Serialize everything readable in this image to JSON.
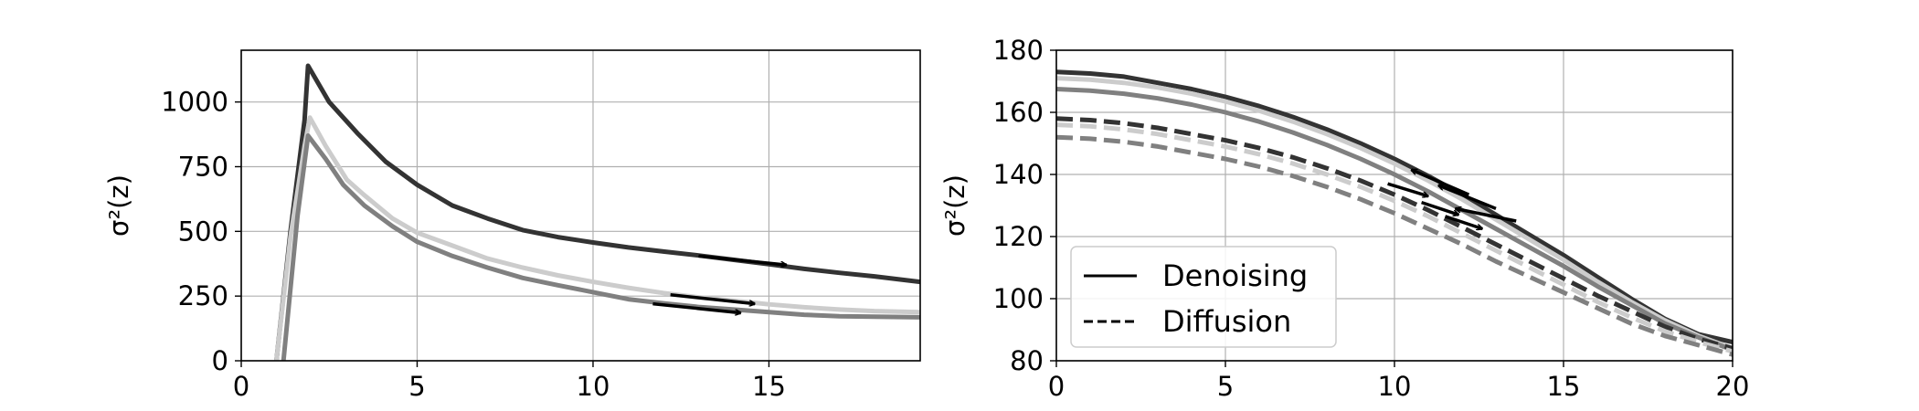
{
  "chart_data": [
    {
      "type": "line",
      "ylabel": "σ²(z)",
      "xlim": [
        0,
        19.3
      ],
      "ylim": [
        0,
        1200
      ],
      "xticks": [
        0,
        5,
        10,
        15
      ],
      "yticks": [
        0,
        250,
        500,
        750,
        1000
      ],
      "xtick_labels": [
        "0",
        "5",
        "10",
        "15"
      ],
      "ytick_labels": [
        "0",
        "250",
        "500",
        "750",
        "1000"
      ],
      "grid": true,
      "series": [
        {
          "color": "#333333",
          "points": [
            [
              1,
              0
            ],
            [
              1.4,
              500
            ],
            [
              1.8,
              930
            ],
            [
              1.9,
              1140
            ],
            [
              2.5,
              1000
            ],
            [
              3.3,
              880
            ],
            [
              4.1,
              770
            ],
            [
              5,
              680
            ],
            [
              6,
              600
            ],
            [
              7,
              550
            ],
            [
              8,
              505
            ],
            [
              9,
              478
            ],
            [
              10,
              457
            ],
            [
              11,
              438
            ],
            [
              12,
              422
            ],
            [
              13,
              407
            ],
            [
              14,
              390
            ],
            [
              15,
              373
            ],
            [
              16,
              355
            ],
            [
              17,
              340
            ],
            [
              18,
              326
            ],
            [
              19.3,
              305
            ]
          ]
        },
        {
          "color": "#cccccc",
          "points": [
            [
              1,
              0
            ],
            [
              1.4,
              480
            ],
            [
              1.8,
              830
            ],
            [
              1.95,
              940
            ],
            [
              2.4,
              830
            ],
            [
              3,
              700
            ],
            [
              3.5,
              640
            ],
            [
              4.3,
              550
            ],
            [
              5,
              495
            ],
            [
              6,
              445
            ],
            [
              7,
              395
            ],
            [
              8,
              360
            ],
            [
              9,
              330
            ],
            [
              10,
              305
            ],
            [
              11,
              282
            ],
            [
              12,
              262
            ],
            [
              13,
              245
            ],
            [
              14,
              232
            ],
            [
              15,
              218
            ],
            [
              16,
              207
            ],
            [
              17,
              198
            ],
            [
              18,
              192
            ],
            [
              19.3,
              188
            ]
          ]
        },
        {
          "color": "#808080",
          "points": [
            [
              1.2,
              0
            ],
            [
              1.6,
              560
            ],
            [
              1.9,
              870
            ],
            [
              2.4,
              780
            ],
            [
              2.9,
              680
            ],
            [
              3.5,
              600
            ],
            [
              4.3,
              520
            ],
            [
              5,
              460
            ],
            [
              6,
              405
            ],
            [
              7,
              360
            ],
            [
              8,
              320
            ],
            [
              9,
              292
            ],
            [
              10,
              265
            ],
            [
              11,
              238
            ],
            [
              12,
              222
            ],
            [
              13,
              208
            ],
            [
              14,
              198
            ],
            [
              15,
              188
            ],
            [
              16,
              178
            ],
            [
              17,
              172
            ],
            [
              18,
              170
            ],
            [
              19.3,
              168
            ]
          ]
        }
      ],
      "arrows": [
        {
          "from": [
            13,
            405
          ],
          "to": [
            15.5,
            370
          ]
        },
        {
          "from": [
            12.2,
            255
          ],
          "to": [
            14.6,
            220
          ]
        },
        {
          "from": [
            11.7,
            220
          ],
          "to": [
            14.2,
            185
          ]
        }
      ]
    },
    {
      "type": "line",
      "ylabel": "σ²(z)",
      "xlim": [
        0,
        20
      ],
      "ylim": [
        80,
        180
      ],
      "xticks": [
        0,
        5,
        10,
        15,
        20
      ],
      "yticks": [
        80,
        100,
        120,
        140,
        160,
        180
      ],
      "xtick_labels": [
        "0",
        "5",
        "10",
        "15",
        "20"
      ],
      "ytick_labels": [
        "80",
        "100",
        "120",
        "140",
        "160",
        "180"
      ],
      "grid": true,
      "legend": {
        "placement": "lower-left",
        "entries": [
          {
            "label": "Denoising",
            "style": "solid"
          },
          {
            "label": "Diffusion",
            "style": "dashed"
          }
        ]
      },
      "series": [
        {
          "style": "solid",
          "color": "#333333",
          "x": [
            0,
            1,
            2,
            3,
            4,
            5,
            6,
            7,
            8,
            9,
            10,
            11,
            12,
            13,
            14,
            15,
            16,
            17,
            18,
            19,
            20
          ],
          "y": [
            173,
            172.5,
            171.5,
            169.5,
            167.5,
            165,
            162,
            158.5,
            154.5,
            150,
            145,
            139.5,
            133.5,
            127,
            120.5,
            114,
            107,
            100,
            93.5,
            88.5,
            86
          ]
        },
        {
          "style": "solid",
          "color": "#cccccc",
          "x": [
            0,
            1,
            2,
            3,
            4,
            5,
            6,
            7,
            8,
            9,
            10,
            11,
            12,
            13,
            14,
            15,
            16,
            17,
            18,
            19,
            20
          ],
          "y": [
            171,
            170.5,
            169.5,
            168,
            166,
            163.5,
            160.5,
            157,
            153,
            148.5,
            143.5,
            138,
            132,
            125.5,
            119,
            112.5,
            105.5,
            99,
            93,
            88,
            84
          ]
        },
        {
          "style": "solid",
          "color": "#808080",
          "x": [
            0,
            1,
            2,
            3,
            4,
            5,
            6,
            7,
            8,
            9,
            10,
            11,
            12,
            13,
            14,
            15,
            16,
            17,
            18,
            19,
            20
          ],
          "y": [
            167.5,
            167,
            166,
            164.5,
            162.5,
            160,
            157,
            153.5,
            149.5,
            145,
            140,
            134.5,
            128.5,
            122.5,
            116.5,
            110.5,
            104,
            98,
            92,
            87.5,
            83.5
          ]
        },
        {
          "style": "dashed",
          "color": "#333333",
          "x": [
            0,
            1,
            2,
            3,
            4,
            5,
            6,
            7,
            8,
            9,
            10,
            11,
            12,
            13,
            14,
            15,
            16,
            17,
            18,
            19,
            20
          ],
          "y": [
            158,
            157.5,
            156.5,
            155,
            153,
            151,
            148.5,
            145.5,
            142,
            138,
            133.5,
            128.5,
            123,
            117.5,
            112,
            106.5,
            101,
            96,
            91,
            87,
            84
          ]
        },
        {
          "style": "dashed",
          "color": "#cccccc",
          "x": [
            0,
            1,
            2,
            3,
            4,
            5,
            6,
            7,
            8,
            9,
            10,
            11,
            12,
            13,
            14,
            15,
            16,
            17,
            18,
            19,
            20
          ],
          "y": [
            156,
            155.5,
            154.5,
            153,
            151,
            149,
            146.5,
            143.5,
            140,
            136,
            131.5,
            126.5,
            121,
            115.5,
            110,
            104.5,
            99,
            94,
            89.5,
            86,
            83
          ]
        },
        {
          "style": "dashed",
          "color": "#808080",
          "x": [
            0,
            1,
            2,
            3,
            4,
            5,
            6,
            7,
            8,
            9,
            10,
            11,
            12,
            13,
            14,
            15,
            16,
            17,
            18,
            19,
            20
          ],
          "y": [
            152,
            151.5,
            150.5,
            149,
            147,
            145,
            142.5,
            139.5,
            136,
            132,
            127.5,
            122.5,
            117.5,
            112,
            107,
            102,
            97,
            92,
            88,
            85,
            82
          ]
        }
      ],
      "arrows": [
        {
          "from": [
            12.2,
            133.5
          ],
          "to": [
            10.5,
            141.5
          ]
        },
        {
          "from": [
            13,
            129
          ],
          "to": [
            11.3,
            136.5
          ]
        },
        {
          "from": [
            13.6,
            125
          ],
          "to": [
            11.8,
            129
          ]
        },
        {
          "from": [
            9.8,
            137
          ],
          "to": [
            11,
            133
          ]
        },
        {
          "from": [
            10.8,
            131
          ],
          "to": [
            11.9,
            127
          ]
        },
        {
          "from": [
            11.5,
            126.5
          ],
          "to": [
            12.6,
            122.5
          ]
        }
      ]
    }
  ]
}
